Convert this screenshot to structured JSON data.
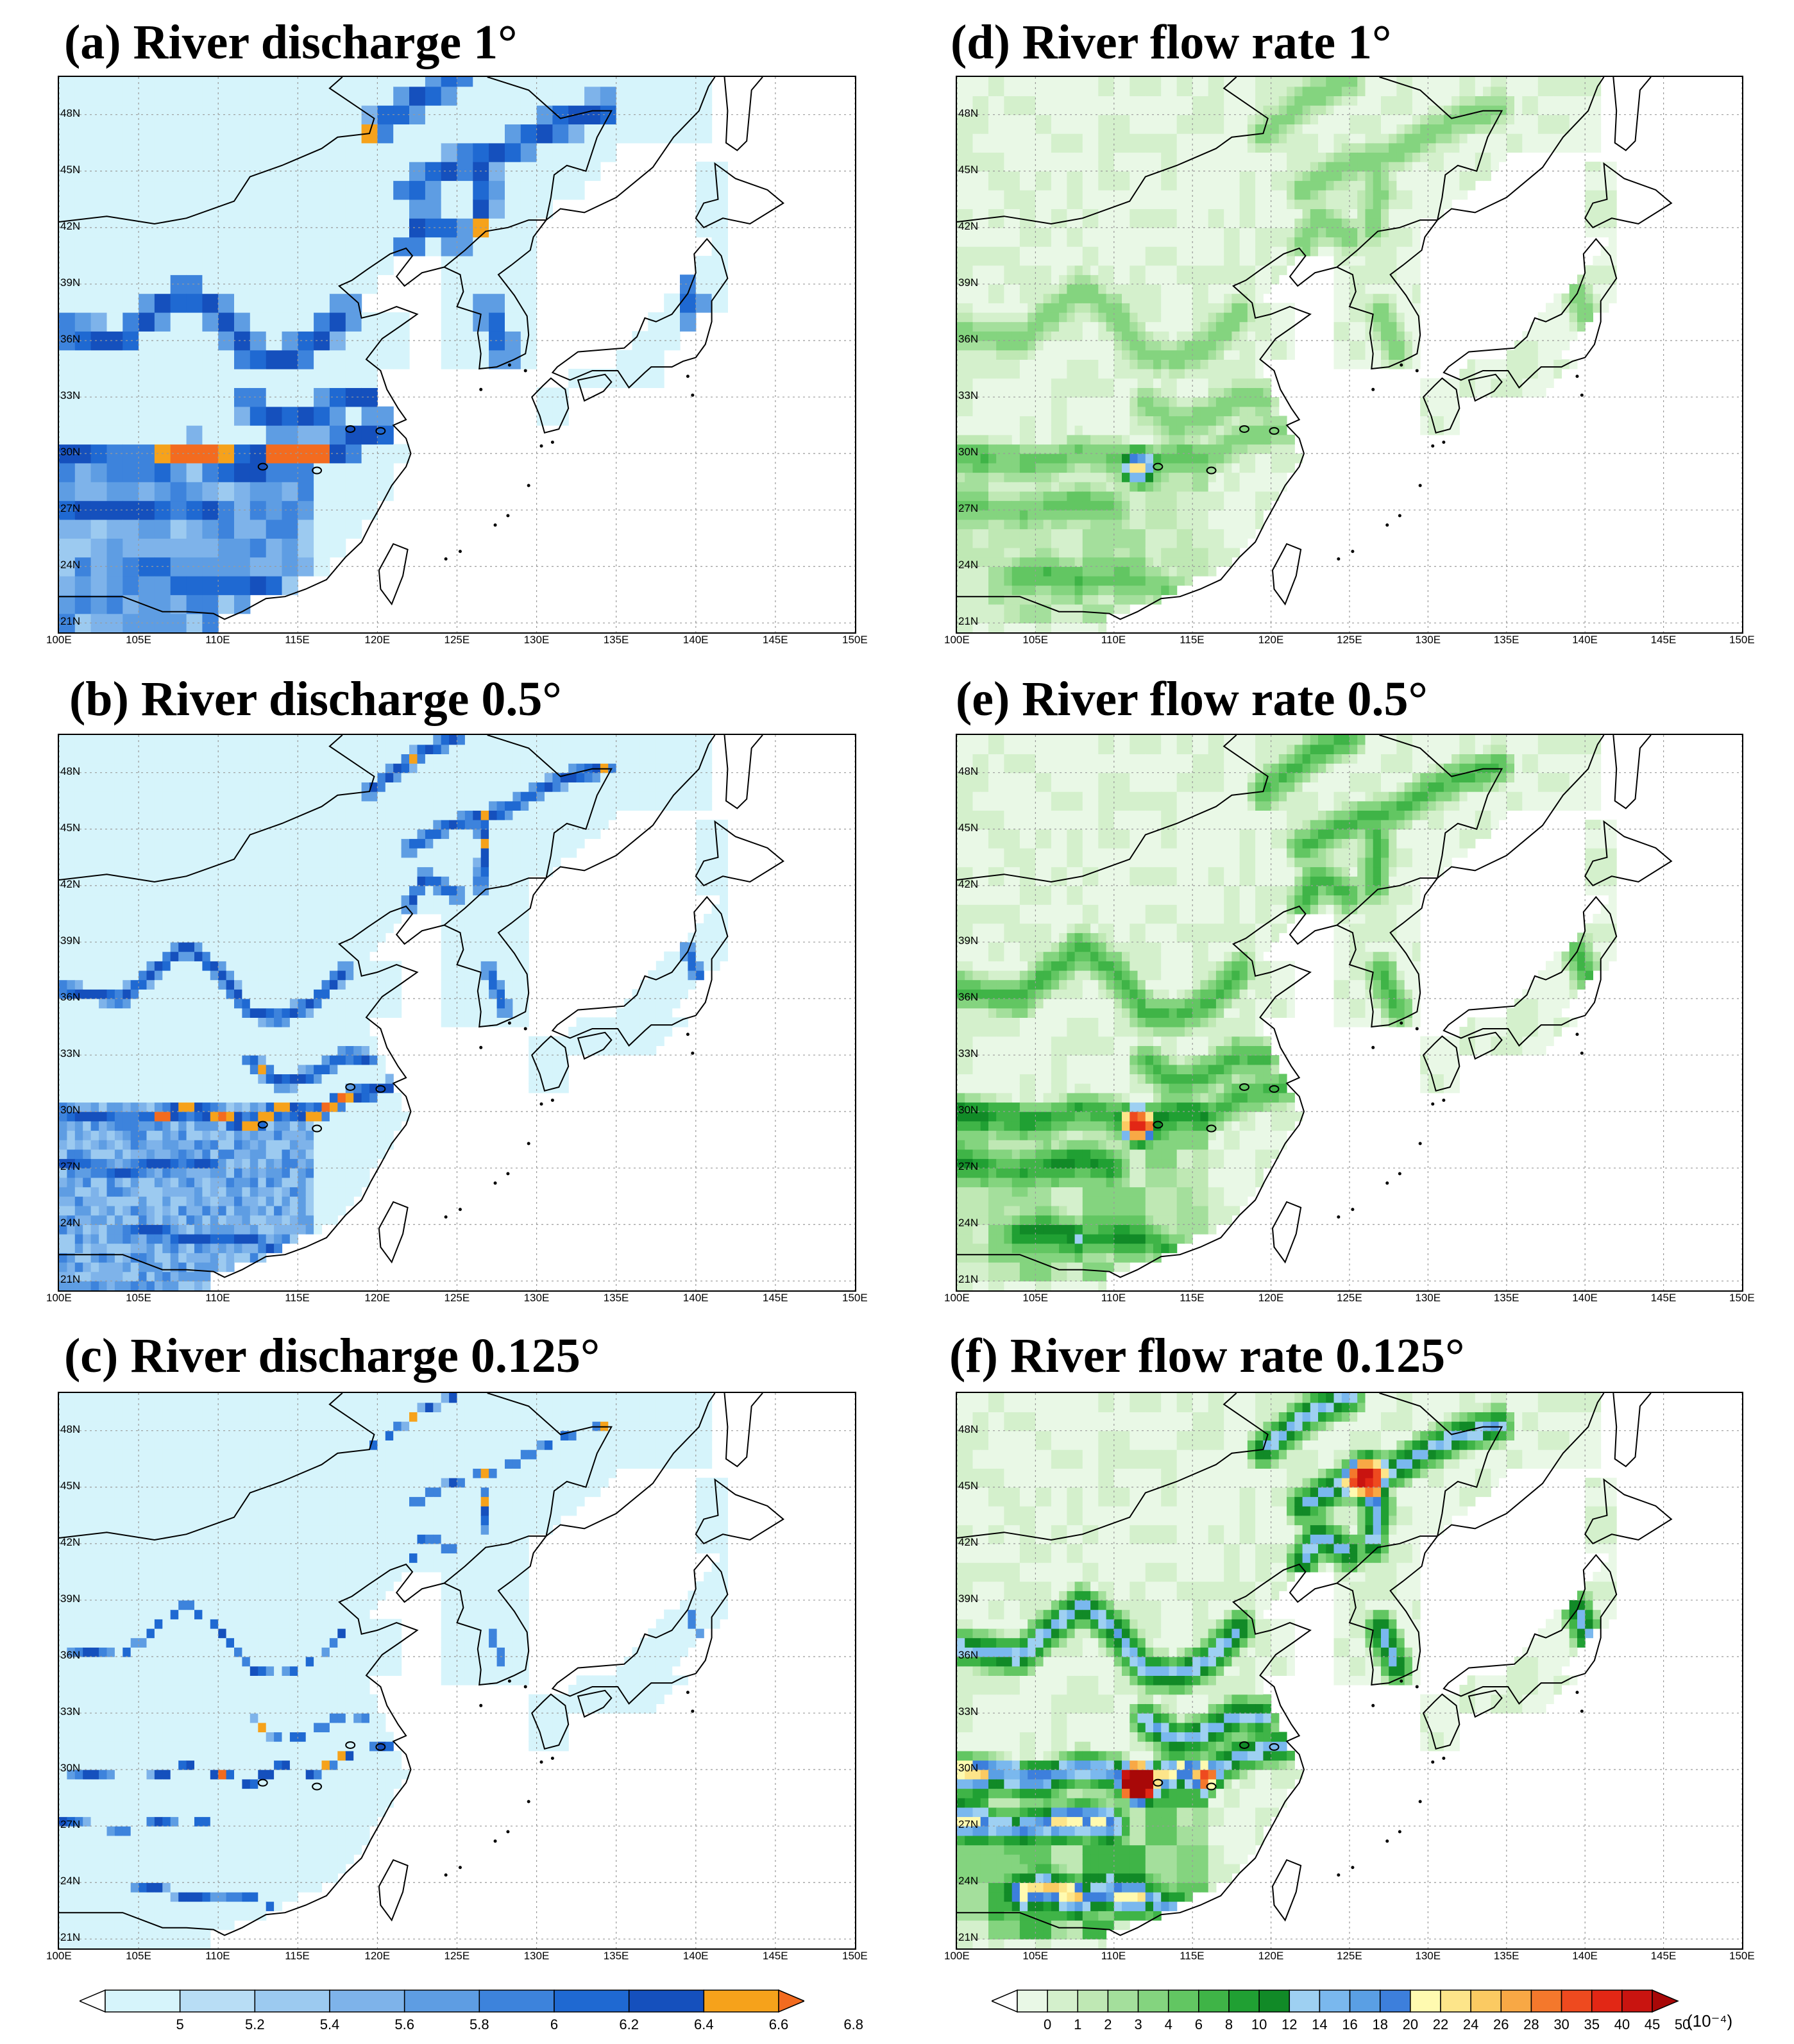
{
  "panels": [
    {
      "id": "a",
      "title": "(a) River discharge 1°",
      "variable": "discharge",
      "resolution_deg": 1
    },
    {
      "id": "b",
      "title": "(b) River discharge 0.5°",
      "variable": "discharge",
      "resolution_deg": 0.5
    },
    {
      "id": "c",
      "title": "(c) River discharge 0.125°",
      "variable": "discharge",
      "resolution_deg": 0.125
    },
    {
      "id": "d",
      "title": "(d) River flow rate 1°",
      "variable": "flow",
      "resolution_deg": 1
    },
    {
      "id": "e",
      "title": "(e) River flow rate 0.5°",
      "variable": "flow",
      "resolution_deg": 0.5
    },
    {
      "id": "f",
      "title": "(f) River flow rate 0.125°",
      "variable": "flow",
      "resolution_deg": 0.125
    }
  ],
  "axes": {
    "lat_labels": [
      "48N",
      "45N",
      "42N",
      "39N",
      "36N",
      "33N",
      "30N",
      "27N",
      "24N",
      "21N"
    ],
    "lat_values": [
      48,
      45,
      42,
      39,
      36,
      33,
      30,
      27,
      24,
      21
    ],
    "lon_labels": [
      "100E",
      "105E",
      "110E",
      "115E",
      "120E",
      "125E",
      "130E",
      "135E",
      "140E",
      "145E",
      "150E"
    ],
    "lon_values": [
      100,
      105,
      110,
      115,
      120,
      125,
      130,
      135,
      140,
      145,
      150
    ],
    "lon_range": [
      100,
      150
    ],
    "lat_range": [
      20.5,
      50
    ],
    "grid": "dotted"
  },
  "colorbars": {
    "discharge": {
      "labels": [
        "5",
        "5.2",
        "5.4",
        "5.6",
        "5.8",
        "6",
        "6.2",
        "6.4",
        "6.6",
        "6.8"
      ],
      "colors": [
        "#ffffff",
        "#d6f4fb",
        "#b8ddf5",
        "#9ccaf0",
        "#7eb3ea",
        "#5e9de3",
        "#3d83dc",
        "#1f69d2",
        "#1550bd",
        "#f6a21b",
        "#f36b1f"
      ]
    },
    "flow": {
      "labels": [
        "0",
        "1",
        "2",
        "3",
        "4",
        "6",
        "8",
        "10",
        "12",
        "14",
        "16",
        "18",
        "20",
        "22",
        "24",
        "26",
        "28",
        "30",
        "35",
        "40",
        "45",
        "50"
      ],
      "unit": "(10⁻⁴)",
      "colors": [
        "#ffffff",
        "#e9f8e6",
        "#d4f0cc",
        "#bfe8b4",
        "#a4df9c",
        "#84d47f",
        "#62c662",
        "#3fb447",
        "#20a033",
        "#118a27",
        "#9ed0f2",
        "#7ab8ee",
        "#5a9fe4",
        "#3d7fdc",
        "#fffab0",
        "#fde58a",
        "#fbca62",
        "#f8a845",
        "#f4782c",
        "#ee4a1f",
        "#e22715",
        "#c91410",
        "#a80808"
      ]
    }
  }
}
